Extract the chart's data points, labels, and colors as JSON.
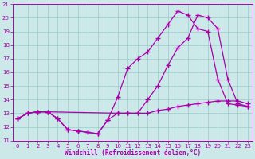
{
  "title": "",
  "xlabel": "Windchill (Refroidissement éolien,°C)",
  "xlim": [
    -0.5,
    23.5
  ],
  "ylim": [
    11,
    21
  ],
  "yticks": [
    11,
    12,
    13,
    14,
    15,
    16,
    17,
    18,
    19,
    20,
    21
  ],
  "xticks": [
    0,
    1,
    2,
    3,
    4,
    5,
    6,
    7,
    8,
    9,
    10,
    11,
    12,
    13,
    14,
    15,
    16,
    17,
    18,
    19,
    20,
    21,
    22,
    23
  ],
  "bg_color": "#cce8e8",
  "line_color": "#aa00aa",
  "grid_color": "#99cccc",
  "line1_x": [
    0,
    1,
    2,
    3,
    4,
    5,
    6,
    7,
    8,
    9,
    10,
    11,
    12,
    13,
    14,
    15,
    16,
    17,
    18,
    19,
    20,
    21,
    22,
    23
  ],
  "line1_y": [
    12.6,
    13.0,
    13.1,
    13.1,
    12.6,
    11.8,
    11.7,
    11.6,
    11.5,
    12.5,
    14.2,
    16.3,
    17.0,
    17.5,
    18.5,
    19.5,
    20.5,
    20.2,
    19.2,
    19.0,
    15.5,
    13.7,
    13.6,
    13.5
  ],
  "line2_x": [
    0,
    1,
    2,
    3,
    10,
    11,
    12,
    13,
    14,
    15,
    16,
    17,
    18,
    19,
    20,
    21,
    22,
    23
  ],
  "line2_y": [
    12.6,
    13.0,
    13.1,
    13.1,
    13.0,
    13.0,
    13.0,
    14.0,
    15.0,
    16.5,
    17.8,
    18.5,
    20.2,
    20.0,
    19.2,
    15.5,
    13.7,
    13.5
  ],
  "line3_x": [
    0,
    1,
    2,
    3,
    4,
    5,
    6,
    7,
    8,
    9,
    10,
    11,
    12,
    13,
    14,
    15,
    16,
    17,
    18,
    19,
    20,
    21,
    22,
    23
  ],
  "line3_y": [
    12.6,
    13.0,
    13.1,
    13.1,
    12.6,
    11.8,
    11.7,
    11.6,
    11.5,
    12.5,
    13.0,
    13.0,
    13.0,
    13.0,
    13.2,
    13.3,
    13.5,
    13.6,
    13.7,
    13.8,
    13.9,
    13.9,
    13.9,
    13.7
  ]
}
